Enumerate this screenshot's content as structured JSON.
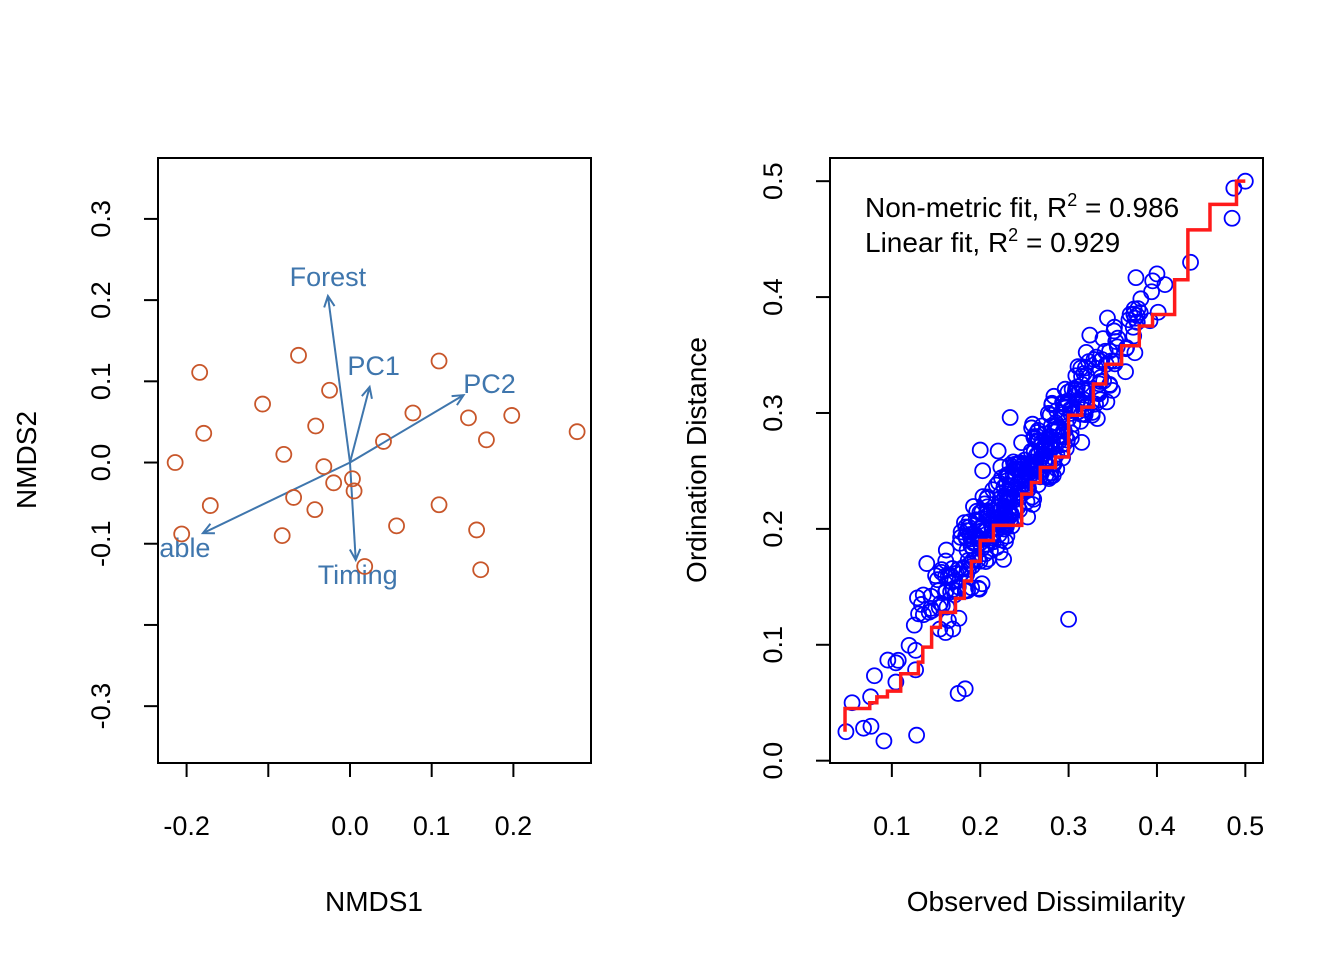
{
  "colors": {
    "site_points": "#c8562a",
    "env_vectors": "#3f76ad",
    "shepard_points": "#0000ff",
    "shepard_fit": "#ff1a1a",
    "axes": "#000000"
  },
  "chart_data": [
    {
      "type": "scatter",
      "xlabel": "NMDS1",
      "ylabel": "NMDS2",
      "xlim": [
        -0.235,
        0.295
      ],
      "ylim": [
        -0.37,
        0.375
      ],
      "x_ticks": [
        {
          "value": -0.2,
          "label": "-0.2"
        },
        {
          "value": -0.1,
          "label": ""
        },
        {
          "value": 0.0,
          "label": "0.0"
        },
        {
          "value": 0.1,
          "label": "0.1"
        },
        {
          "value": 0.2,
          "label": "0.2"
        }
      ],
      "y_ticks": [
        {
          "value": -0.3,
          "label": "-0.3"
        },
        {
          "value": -0.2,
          "label": ""
        },
        {
          "value": -0.1,
          "label": "-0.1"
        },
        {
          "value": 0.0,
          "label": "0.0"
        },
        {
          "value": 0.1,
          "label": "0.1"
        },
        {
          "value": 0.2,
          "label": "0.2"
        },
        {
          "value": 0.3,
          "label": "0.3"
        }
      ],
      "grid": false,
      "sites": [
        [
          -0.214,
          0.0
        ],
        [
          -0.206,
          -0.088
        ],
        [
          -0.184,
          0.111
        ],
        [
          -0.179,
          0.036
        ],
        [
          -0.171,
          -0.053
        ],
        [
          -0.107,
          0.072
        ],
        [
          -0.081,
          0.01
        ],
        [
          -0.083,
          -0.09
        ],
        [
          -0.069,
          -0.043
        ],
        [
          -0.063,
          0.132
        ],
        [
          -0.042,
          0.045
        ],
        [
          -0.043,
          -0.058
        ],
        [
          -0.032,
          -0.005
        ],
        [
          -0.025,
          0.089
        ],
        [
          -0.02,
          -0.025
        ],
        [
          0.003,
          -0.02
        ],
        [
          0.005,
          -0.035
        ],
        [
          0.018,
          -0.128
        ],
        [
          0.041,
          0.026
        ],
        [
          0.057,
          -0.078
        ],
        [
          0.077,
          0.061
        ],
        [
          0.109,
          0.125
        ],
        [
          0.109,
          -0.052
        ],
        [
          0.145,
          0.055
        ],
        [
          0.155,
          -0.083
        ],
        [
          0.16,
          -0.132
        ],
        [
          0.167,
          0.028
        ],
        [
          0.198,
          0.058
        ],
        [
          0.278,
          0.038
        ]
      ],
      "vectors": [
        {
          "label": "Forest",
          "x": -0.027,
          "y": 0.205
        },
        {
          "label": "PC1",
          "x": 0.024,
          "y": 0.093
        },
        {
          "label": "PC2",
          "x": 0.139,
          "y": 0.083
        },
        {
          "label": "able",
          "x": -0.18,
          "y": -0.087
        },
        {
          "label": "Timing",
          "x": 0.007,
          "y": -0.12
        }
      ]
    },
    {
      "type": "scatter",
      "xlabel": "Observed Dissimilarity",
      "ylabel": "Ordination Distance",
      "xlim": [
        0.03,
        0.52
      ],
      "ylim": [
        -0.002,
        0.52
      ],
      "x_ticks": [
        "0.1",
        "0.2",
        "0.3",
        "0.4",
        "0.5"
      ],
      "y_ticks": [
        "0.0",
        "0.1",
        "0.2",
        "0.3",
        "0.4",
        "0.5"
      ],
      "grid": false,
      "annotations": [
        {
          "prefix": "Non-metric fit, R",
          "sup": "2",
          "suffix": " = 0.986"
        },
        {
          "prefix": "Linear fit, R",
          "sup": "2",
          "suffix": " = 0.929"
        }
      ],
      "notable_points": [
        [
          0.048,
          0.025
        ],
        [
          0.055,
          0.05
        ],
        [
          0.068,
          0.028
        ],
        [
          0.091,
          0.017
        ],
        [
          0.128,
          0.022
        ],
        [
          0.175,
          0.058
        ],
        [
          0.183,
          0.062
        ],
        [
          0.3,
          0.122
        ],
        [
          0.2,
          0.268
        ],
        [
          0.375,
          0.352
        ],
        [
          0.4,
          0.42
        ],
        [
          0.438,
          0.43
        ],
        [
          0.485,
          0.468
        ],
        [
          0.487,
          0.494
        ],
        [
          0.5,
          0.5
        ]
      ],
      "point_cloud": {
        "n": 450,
        "trend_slope": 1.05,
        "trend_intercept": -0.018,
        "spread_sd": 0.018,
        "x_range": [
          0.05,
          0.44
        ]
      },
      "monotone_fit_steps": [
        [
          0.047,
          0.025
        ],
        [
          0.047,
          0.045
        ],
        [
          0.075,
          0.045
        ],
        [
          0.075,
          0.05
        ],
        [
          0.083,
          0.05
        ],
        [
          0.083,
          0.055
        ],
        [
          0.095,
          0.055
        ],
        [
          0.095,
          0.06
        ],
        [
          0.11,
          0.06
        ],
        [
          0.11,
          0.075
        ],
        [
          0.13,
          0.075
        ],
        [
          0.13,
          0.085
        ],
        [
          0.135,
          0.085
        ],
        [
          0.135,
          0.098
        ],
        [
          0.145,
          0.098
        ],
        [
          0.145,
          0.115
        ],
        [
          0.155,
          0.115
        ],
        [
          0.155,
          0.128
        ],
        [
          0.172,
          0.128
        ],
        [
          0.172,
          0.14
        ],
        [
          0.182,
          0.14
        ],
        [
          0.182,
          0.155
        ],
        [
          0.19,
          0.155
        ],
        [
          0.19,
          0.172
        ],
        [
          0.2,
          0.172
        ],
        [
          0.2,
          0.19
        ],
        [
          0.215,
          0.19
        ],
        [
          0.215,
          0.203
        ],
        [
          0.247,
          0.203
        ],
        [
          0.247,
          0.23
        ],
        [
          0.258,
          0.23
        ],
        [
          0.258,
          0.24
        ],
        [
          0.268,
          0.24
        ],
        [
          0.268,
          0.253
        ],
        [
          0.285,
          0.253
        ],
        [
          0.285,
          0.262
        ],
        [
          0.3,
          0.262
        ],
        [
          0.3,
          0.298
        ],
        [
          0.315,
          0.298
        ],
        [
          0.315,
          0.305
        ],
        [
          0.328,
          0.305
        ],
        [
          0.328,
          0.325
        ],
        [
          0.342,
          0.325
        ],
        [
          0.342,
          0.342
        ],
        [
          0.36,
          0.342
        ],
        [
          0.36,
          0.358
        ],
        [
          0.38,
          0.358
        ],
        [
          0.38,
          0.375
        ],
        [
          0.395,
          0.375
        ],
        [
          0.395,
          0.385
        ],
        [
          0.42,
          0.385
        ],
        [
          0.42,
          0.415
        ],
        [
          0.435,
          0.415
        ],
        [
          0.435,
          0.458
        ],
        [
          0.46,
          0.458
        ],
        [
          0.46,
          0.48
        ],
        [
          0.49,
          0.48
        ],
        [
          0.49,
          0.5
        ],
        [
          0.5,
          0.5
        ]
      ]
    }
  ]
}
